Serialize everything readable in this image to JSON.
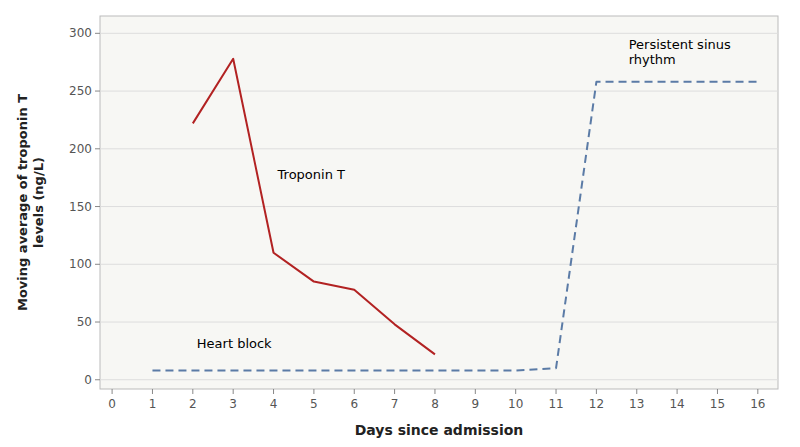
{
  "chart_data": {
    "type": "line",
    "x_label": "Days since admission",
    "y_label": "Moving average of troponin T\nlevels (ng/L)",
    "series": [
      {
        "x": [
          2,
          3,
          4,
          5,
          6,
          7,
          8
        ],
        "values": [
          222,
          278,
          110,
          85,
          78,
          48,
          22
        ],
        "color": "#b22222",
        "line_style": "solid"
      },
      {
        "x": [
          1,
          2,
          3,
          4,
          5,
          6,
          7,
          8,
          9,
          10,
          11,
          12,
          13,
          14,
          15,
          16
        ],
        "values": [
          8,
          8,
          8,
          8,
          8,
          8,
          8,
          8,
          8,
          8,
          10,
          258,
          258,
          258,
          258,
          258
        ],
        "color": "#5b7ba6",
        "line_style": "dashed"
      }
    ],
    "annotations": [
      {
        "text": "Troponin T",
        "x": 4.1,
        "y": 178
      },
      {
        "text": "Heart block",
        "x": 2.1,
        "y": 32
      },
      {
        "text": "Persistent sinus\nrhythm",
        "x": 12.8,
        "y": 295
      }
    ],
    "xlim": [
      -0.3,
      16.5
    ],
    "ylim": [
      -8,
      315
    ],
    "xticks": [
      0,
      1,
      2,
      3,
      4,
      5,
      6,
      7,
      8,
      9,
      10,
      11,
      12,
      13,
      14,
      15,
      16
    ],
    "yticks": [
      0,
      50,
      100,
      150,
      200,
      250,
      300
    ],
    "grid": true
  }
}
